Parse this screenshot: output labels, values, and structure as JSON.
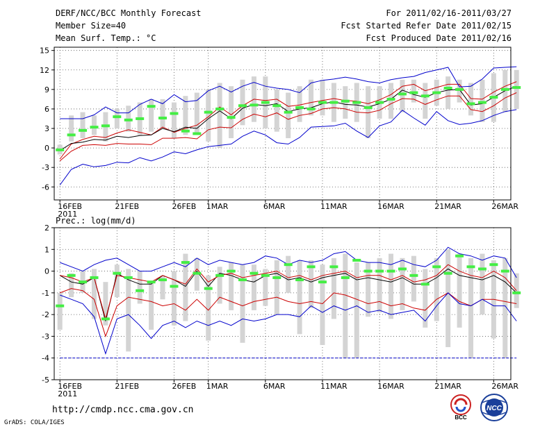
{
  "header": {
    "title": "DERF/NCC/BCC Monthly Forecast",
    "member_size": "Member Size=40",
    "variable": "Mean Surf. Temp.: °C",
    "period": "For 2011/02/16-2011/03/27",
    "fcst_started": "Fcst Started Refer Date 2011/02/15",
    "fcst_produced": "Fcst Produced Date 2011/02/16"
  },
  "footer": {
    "url": "http://cmdp.ncc.cma.gov.cn",
    "credit": "GrADS: COLA/IGES",
    "logo_bcc": "BCC",
    "logo_ncc": "NCC"
  },
  "colors": {
    "ensemble_mean": "#000000",
    "spread": "#cc0000",
    "extreme": "#0000cc",
    "box": "#d4d4d4",
    "median": "#44ee44"
  },
  "chart_data": [
    {
      "type": "line",
      "title": "",
      "ylabel": "Mean Surf. Temp.: °C",
      "ylim": [
        -8,
        15.5
      ],
      "yticks": [
        15,
        12,
        9,
        6,
        3,
        0,
        -3,
        -6
      ],
      "ytick_labels": [
        "15",
        "12",
        "9",
        "6",
        "3",
        "0",
        "-3",
        "-6"
      ],
      "x_range": [
        0,
        40
      ],
      "xticks": [
        {
          "day": 0.5,
          "label": "16FEB",
          "sub": "2011"
        },
        {
          "day": 5.5,
          "label": "21FEB",
          "sub": ""
        },
        {
          "day": 10.5,
          "label": "26FEB",
          "sub": ""
        },
        {
          "day": 13.5,
          "label": "1MAR",
          "sub": ""
        },
        {
          "day": 18.5,
          "label": "6MAR",
          "sub": ""
        },
        {
          "day": 23.5,
          "label": "11MAR",
          "sub": ""
        },
        {
          "day": 28.5,
          "label": "16MAR",
          "sub": ""
        },
        {
          "day": 33.5,
          "label": "21MAR",
          "sub": ""
        },
        {
          "day": 38.5,
          "label": "26MAR",
          "sub": ""
        }
      ],
      "series": [
        {
          "name": "max",
          "values": [
            -5.7,
            -3.3,
            -2.5,
            -2.9,
            -2.7,
            -2.2,
            -2.3,
            -1.5,
            -2.0,
            -1.4,
            -0.6,
            -0.9,
            -0.3,
            0.2,
            0.4,
            0.6,
            1.8,
            2.6,
            2.0,
            0.8,
            0.6,
            1.6,
            3.2,
            3.3,
            3.4,
            3.8,
            2.6,
            1.6,
            3.4,
            4.0,
            5.8,
            4.6,
            3.5,
            5.6,
            4.2,
            3.6,
            3.8,
            4.2,
            5.0,
            5.6,
            5.9
          ]
        },
        {
          "name": "mean_plus_sd",
          "values": [
            -1.7,
            0.6,
            1.3,
            1.8,
            1.6,
            2.3,
            2.8,
            2.4,
            2.0,
            3.2,
            2.4,
            3.0,
            3.5,
            4.8,
            6.3,
            5.1,
            6.5,
            7.5,
            7.3,
            7.5,
            6.4,
            6.6,
            7.0,
            7.3,
            7.6,
            7.3,
            7.2,
            6.8,
            7.4,
            8.2,
            9.5,
            9.8,
            8.8,
            9.3,
            9.8,
            9.8,
            7.6,
            7.5,
            8.6,
            9.5,
            10.2
          ]
        },
        {
          "name": "mean",
          "values": [
            -0.4,
            0.7,
            0.9,
            1.3,
            1.2,
            1.8,
            1.6,
            1.9,
            2.0,
            3.0,
            2.5,
            3.2,
            3.0,
            4.5,
            5.7,
            4.5,
            6.1,
            6.7,
            6.5,
            6.8,
            5.6,
            6.0,
            6.2,
            6.8,
            7.1,
            6.7,
            6.6,
            6.3,
            6.8,
            7.5,
            8.9,
            8.2,
            7.8,
            8.5,
            8.9,
            9.0,
            6.6,
            6.8,
            7.8,
            8.8,
            9.5
          ]
        },
        {
          "name": "mean_minus_sd",
          "values": [
            -2.0,
            -0.5,
            0.4,
            0.5,
            0.4,
            0.7,
            0.6,
            0.6,
            0.5,
            1.5,
            1.5,
            1.6,
            1.4,
            2.8,
            3.2,
            3.1,
            4.4,
            5.2,
            4.8,
            5.4,
            4.4,
            5.0,
            5.3,
            6.0,
            6.2,
            6.0,
            5.5,
            5.4,
            5.8,
            6.8,
            7.6,
            7.5,
            6.7,
            7.4,
            8.0,
            8.0,
            5.9,
            5.6,
            6.5,
            7.7,
            8.5
          ]
        },
        {
          "name": "min",
          "values": [
            4.5,
            4.5,
            4.5,
            5.1,
            6.3,
            5.4,
            5.4,
            6.7,
            7.5,
            6.8,
            8.2,
            7.1,
            7.3,
            8.8,
            9.5,
            8.6,
            9.5,
            10.1,
            9.5,
            9.2,
            9.0,
            8.5,
            10.0,
            10.4,
            10.6,
            10.9,
            10.6,
            10.2,
            10.0,
            10.5,
            10.8,
            11.0,
            11.6,
            12.0,
            12.4,
            9.4,
            9.5,
            10.6,
            12.3,
            12.4,
            12.5
          ]
        },
        {
          "name": "box_low",
          "values": [
            -1.0,
            1.0,
            1.5,
            2.0,
            1.0,
            3.0,
            2.5,
            2.0,
            2.5,
            3.0,
            1.5,
            2.0,
            2.0,
            1.0,
            0.0,
            1.5,
            3.5,
            4.0,
            3.0,
            2.5,
            1.5,
            4.0,
            5.0,
            5.0,
            4.0,
            4.5,
            4.0,
            1.5,
            4.5,
            4.5,
            5.5,
            7.0,
            4.5,
            6.5,
            6.0,
            7.0,
            5.0,
            4.0,
            4.0,
            5.5,
            6.0
          ]
        },
        {
          "name": "box_high",
          "values": [
            0.5,
            5.0,
            5.5,
            5.0,
            5.5,
            6.0,
            6.5,
            7.0,
            7.5,
            7.5,
            7.0,
            8.0,
            8.5,
            9.0,
            10.0,
            9.5,
            10.5,
            11.0,
            11.0,
            9.0,
            8.5,
            9.5,
            10.5,
            10.5,
            10.0,
            9.5,
            10.0,
            9.5,
            9.5,
            10.0,
            10.5,
            10.5,
            10.0,
            10.5,
            11.0,
            10.5,
            10.0,
            10.5,
            11.5,
            12.0,
            12.0
          ]
        },
        {
          "name": "median",
          "values": [
            -0.3,
            2.0,
            2.7,
            3.2,
            3.4,
            4.8,
            4.3,
            4.5,
            6.4,
            4.6,
            5.3,
            2.6,
            2.2,
            5.5,
            6.0,
            4.7,
            6.5,
            6.6,
            7.0,
            6.5,
            5.5,
            6.2,
            6.0,
            7.0,
            7.0,
            7.2,
            7.0,
            6.2,
            7.0,
            7.5,
            8.3,
            8.5,
            8.0,
            8.5,
            9.2,
            9.0,
            6.8,
            7.0,
            7.8,
            9.0,
            9.3
          ]
        }
      ]
    },
    {
      "type": "line",
      "title": "",
      "ylabel": "Prec.: log(mm/d)",
      "ylim": [
        -5,
        2
      ],
      "yticks": [
        2,
        1,
        0,
        -1,
        -2,
        -3,
        -4,
        -5
      ],
      "ytick_labels": [
        "2",
        "1",
        "0",
        "-1",
        "-2",
        "-3",
        "-4",
        "-5"
      ],
      "x_range": [
        0,
        40
      ],
      "xticks": [
        {
          "day": 0.5,
          "label": "16FEB",
          "sub": "2011"
        },
        {
          "day": 5.5,
          "label": "21FEB",
          "sub": ""
        },
        {
          "day": 10.5,
          "label": "26FEB",
          "sub": ""
        },
        {
          "day": 13.5,
          "label": "1MAR",
          "sub": ""
        },
        {
          "day": 18.5,
          "label": "6MAR",
          "sub": ""
        },
        {
          "day": 23.5,
          "label": "11MAR",
          "sub": ""
        },
        {
          "day": 28.5,
          "label": "16MAR",
          "sub": ""
        },
        {
          "day": 33.5,
          "label": "21MAR",
          "sub": ""
        },
        {
          "day": 38.5,
          "label": "26MAR",
          "sub": ""
        }
      ],
      "series": [
        {
          "name": "max",
          "values": [
            0.4,
            0.2,
            0.0,
            0.3,
            0.5,
            0.6,
            0.3,
            0.0,
            0.0,
            0.2,
            0.4,
            0.2,
            0.6,
            0.3,
            0.5,
            0.4,
            0.3,
            0.4,
            0.7,
            0.6,
            0.3,
            0.5,
            0.4,
            0.5,
            0.8,
            0.9,
            0.5,
            0.4,
            0.4,
            0.3,
            0.5,
            0.3,
            0.2,
            0.5,
            1.1,
            0.8,
            0.7,
            0.5,
            0.7,
            0.6,
            -0.3
          ]
        },
        {
          "name": "mean",
          "values": [
            -0.2,
            -0.5,
            -0.6,
            -0.3,
            -2.3,
            -0.1,
            -0.4,
            -0.6,
            -0.6,
            -0.2,
            -0.4,
            -0.7,
            0.0,
            -0.7,
            -0.1,
            -0.2,
            -0.4,
            -0.5,
            -0.2,
            -0.1,
            -0.4,
            -0.3,
            -0.5,
            -0.3,
            -0.2,
            -0.1,
            -0.4,
            -0.3,
            -0.4,
            -0.5,
            -0.3,
            -0.6,
            -0.6,
            -0.3,
            0.1,
            -0.2,
            -0.3,
            -0.4,
            -0.2,
            -0.5,
            -1.0
          ]
        },
        {
          "name": "mean_plus_sd",
          "values": [
            -0.2,
            -0.3,
            -0.5,
            -0.3,
            -2.2,
            -0.2,
            -0.3,
            -0.4,
            -0.5,
            -0.2,
            -0.4,
            -0.6,
            0.1,
            -0.5,
            -0.2,
            -0.1,
            -0.3,
            -0.2,
            -0.1,
            0.0,
            -0.3,
            -0.2,
            -0.4,
            -0.2,
            -0.1,
            0.0,
            -0.3,
            -0.2,
            -0.2,
            -0.4,
            -0.2,
            -0.5,
            -0.4,
            -0.2,
            0.3,
            0.0,
            -0.2,
            -0.3,
            0.0,
            -0.3,
            -0.9
          ]
        },
        {
          "name": "mean_minus_sd",
          "values": [
            -1.0,
            -0.8,
            -0.9,
            -1.3,
            -3.0,
            -1.6,
            -1.2,
            -1.3,
            -1.4,
            -1.6,
            -1.5,
            -1.8,
            -1.3,
            -1.8,
            -1.2,
            -1.4,
            -1.6,
            -1.4,
            -1.3,
            -1.2,
            -1.4,
            -1.5,
            -1.4,
            -1.5,
            -1.0,
            -1.1,
            -1.3,
            -1.5,
            -1.4,
            -1.6,
            -1.5,
            -1.7,
            -1.8,
            -1.3,
            -1.0,
            -1.4,
            -1.6,
            -1.3,
            -1.3,
            -1.4,
            -1.5
          ]
        },
        {
          "name": "min",
          "values": [
            -1.1,
            -1.3,
            -1.5,
            -2.1,
            -3.8,
            -2.2,
            -2.0,
            -2.5,
            -3.1,
            -2.5,
            -2.3,
            -2.6,
            -2.3,
            -2.5,
            -2.3,
            -2.5,
            -2.2,
            -2.3,
            -2.2,
            -2.0,
            -2.0,
            -2.1,
            -1.6,
            -1.9,
            -1.6,
            -1.8,
            -1.6,
            -1.9,
            -1.8,
            -2.0,
            -1.9,
            -1.8,
            -2.3,
            -1.6,
            -1.0,
            -1.5,
            -1.6,
            -1.3,
            -1.6,
            -1.6,
            -2.3
          ]
        },
        {
          "name": "floor",
          "values": [
            -4,
            -4,
            -4,
            -4,
            -4,
            -4,
            -4,
            -4,
            -4,
            -4,
            -4,
            -4,
            -4,
            -4,
            -4,
            -4,
            -4,
            -4,
            -4,
            -4,
            -4,
            -4,
            -4,
            -4,
            -4,
            -4,
            -4,
            -4,
            -4,
            -4,
            -4,
            -4,
            -4,
            -4,
            -4,
            -4,
            -4,
            -4,
            -4,
            -4,
            -4
          ]
        },
        {
          "name": "box_low",
          "values": [
            -2.7,
            -1.2,
            -1.0,
            -2.2,
            -2.5,
            -1.2,
            -3.7,
            -1.5,
            -2.7,
            -1.3,
            -2.5,
            -2.3,
            -0.9,
            -3.2,
            -1.5,
            -1.8,
            -3.3,
            -1.8,
            -1.6,
            -2.0,
            -1.0,
            -2.9,
            -1.7,
            -3.4,
            -2.2,
            -4.0,
            -4.0,
            -2.1,
            -1.9,
            -2.2,
            -1.8,
            -1.4,
            -2.6,
            -2.3,
            -3.5,
            -2.6,
            -4.0,
            -2.0,
            -3.1,
            -4.0,
            -1.7
          ]
        },
        {
          "name": "box_high",
          "values": [
            -1.0,
            -0.1,
            0.0,
            0.1,
            -0.5,
            0.3,
            0.1,
            0.0,
            -0.5,
            -0.2,
            0.0,
            0.8,
            0.6,
            -0.2,
            0.2,
            0.4,
            0.3,
            0.3,
            0.1,
            0.5,
            0.7,
            0.5,
            0.5,
            0.3,
            0.6,
            0.8,
            0.4,
            0.4,
            0.6,
            0.8,
            0.6,
            0.7,
            0.1,
            0.6,
            1.0,
            0.8,
            0.6,
            0.8,
            0.5,
            0.6,
            -0.1
          ]
        },
        {
          "name": "median",
          "values": [
            -1.6,
            -0.2,
            -0.5,
            -0.3,
            -2.2,
            -0.1,
            -0.3,
            -0.9,
            -0.5,
            -0.4,
            -0.7,
            0.4,
            -0.1,
            -0.8,
            -0.2,
            0.0,
            -0.4,
            -0.1,
            -0.2,
            -0.3,
            0.3,
            -0.4,
            0.2,
            -0.5,
            0.2,
            -0.3,
            0.5,
            0.0,
            0.0,
            0.0,
            0.1,
            -0.2,
            -0.6,
            0.2,
            -0.1,
            0.7,
            0.2,
            0.1,
            0.3,
            0.0,
            -1.0
          ]
        }
      ]
    }
  ]
}
